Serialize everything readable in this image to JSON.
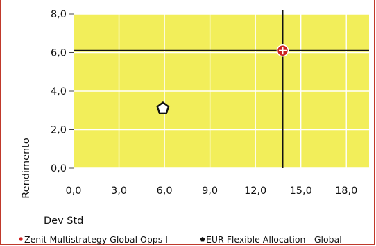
{
  "colors": {
    "frame_border": "#c0392b",
    "plot_background": "#f2ee5a",
    "grid": "#ffffff",
    "crosshair": "#111111",
    "fund_marker": "#cc1f1f",
    "peer_marker": "#111111"
  },
  "chart_data": {
    "type": "scatter",
    "title": "",
    "xlabel": "Dev Std",
    "ylabel": "Rendimento",
    "xlim": [
      0,
      19.5
    ],
    "ylim": [
      0,
      8
    ],
    "x_ticks": [
      "0,0",
      "3,0",
      "6,0",
      "9,0",
      "12,0",
      "15,0",
      "18,0"
    ],
    "x_tick_values": [
      0,
      3,
      6,
      9,
      12,
      15,
      18
    ],
    "y_ticks": [
      "0,0",
      "2,0",
      "4,0",
      "6,0",
      "8,0"
    ],
    "y_tick_values": [
      0,
      2,
      4,
      6,
      8
    ],
    "grid": true,
    "legend_position": "bottom",
    "crosshair": {
      "x": 13.8,
      "y": 6.1
    },
    "series": [
      {
        "name": "Zenit Multistrategy Global Opps I",
        "marker": "circle-cross",
        "color": "#cc1f1f",
        "points": [
          {
            "x": 13.8,
            "y": 6.1
          }
        ]
      },
      {
        "name": "EUR Flexible Allocation - Global",
        "marker": "pentagon",
        "color": "#111111",
        "points": [
          {
            "x": 5.9,
            "y": 3.1
          }
        ]
      }
    ]
  }
}
